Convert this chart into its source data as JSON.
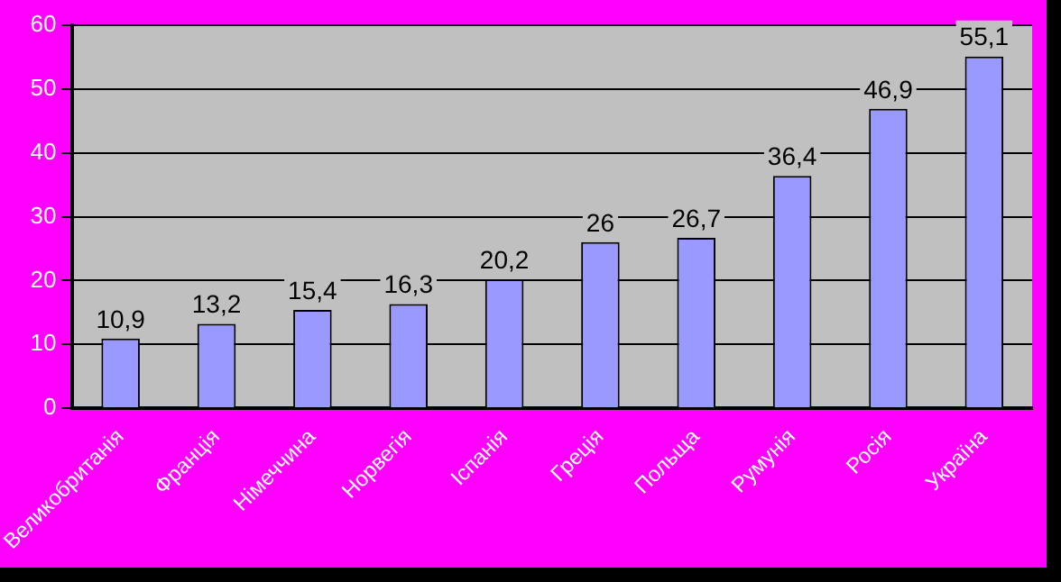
{
  "chart_data": {
    "type": "bar",
    "categories": [
      "Великобританія",
      "Франція",
      "Німеччина",
      "Норвегія",
      "Іспанія",
      "Греція",
      "Польща",
      "Румунія",
      "Росія",
      "Україна"
    ],
    "values": [
      10.9,
      13.2,
      15.4,
      16.3,
      20.2,
      26,
      26.7,
      36.4,
      46.9,
      55.1
    ],
    "value_labels": [
      "10,9",
      "13,2",
      "15,4",
      "16,3",
      "20,2",
      "26",
      "26,7",
      "36,4",
      "46,9",
      "55,1"
    ],
    "color": "#9999ff",
    "ylim": [
      0,
      60
    ],
    "yticks": [
      0,
      10,
      20,
      30,
      40,
      50,
      60
    ],
    "grid": "y",
    "legend": false
  }
}
